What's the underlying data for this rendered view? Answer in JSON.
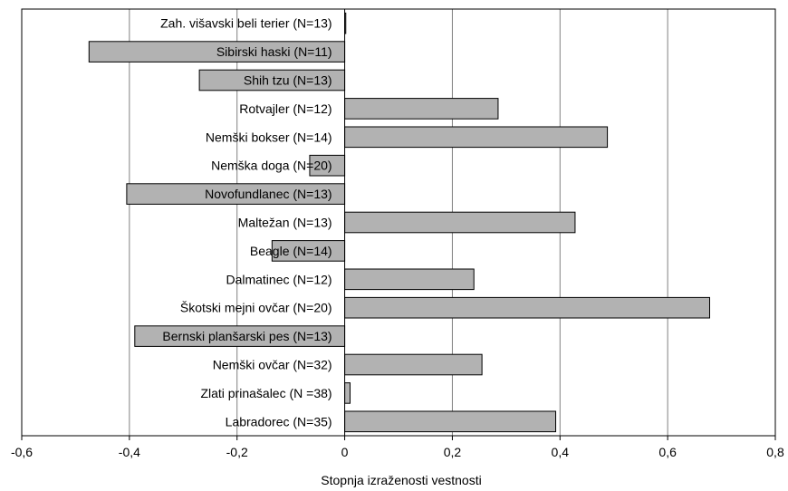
{
  "chart_data": {
    "type": "bar",
    "orientation": "horizontal",
    "categories": [
      "Zah. višavski beli terier (N=13)",
      "Sibirski haski (N=11)",
      "Shih tzu (N=13)",
      "Rotvajler (N=12)",
      "Nemški bokser (N=14)",
      "Nemška doga (N=20)",
      "Novofundlanec (N=13)",
      "Maltežan (N=13)",
      "Beagle (N=14)",
      "Dalmatinec (N=12)",
      "Škotski mejni ovčar (N=20)",
      "Bernski planšarski pes (N=13)",
      "Nemški ovčar (N=32)",
      "Zlati prinašalec (N =38)",
      "Labradorec (N=35)"
    ],
    "values": [
      0.002,
      -0.475,
      -0.27,
      0.285,
      0.488,
      -0.065,
      -0.405,
      0.428,
      -0.135,
      0.24,
      0.678,
      -0.39,
      0.255,
      0.01,
      0.392
    ],
    "xlabel": "Stopnja izraženosti vestnosti",
    "ylabel": "",
    "title": "",
    "xlim": [
      -0.6,
      0.8
    ],
    "xticks": [
      -0.6,
      -0.4,
      -0.2,
      0,
      0.2,
      0.4,
      0.6,
      0.8
    ],
    "xtick_labels": [
      "-0,6",
      "-0,4",
      "-0,2",
      "0",
      "0,2",
      "0,4",
      "0,6",
      "0,8"
    ],
    "grid": true,
    "legend": "none",
    "bar_color": "#b2b2b2",
    "bar_edge_color": "#000000",
    "grid_color": "#808080"
  }
}
